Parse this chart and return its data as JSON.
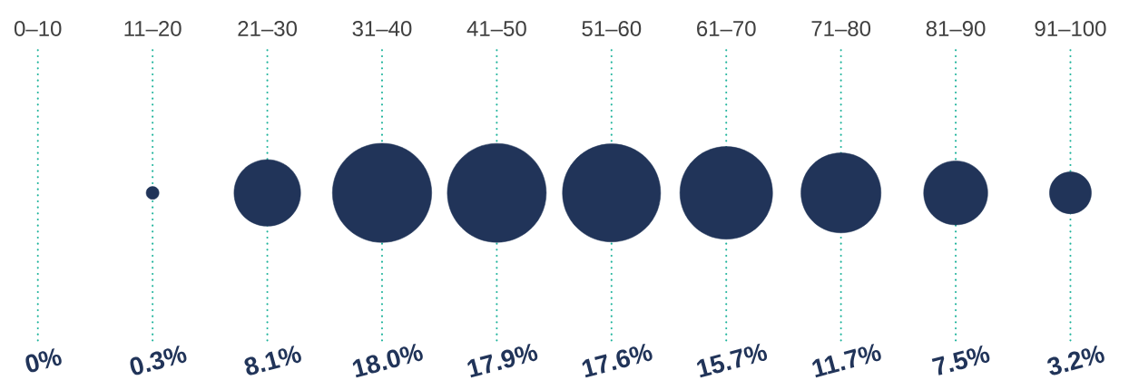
{
  "chart_data": {
    "type": "other",
    "color": "#213459",
    "categories": [
      "0–10",
      "11–20",
      "21–30",
      "31–40",
      "41–50",
      "51–60",
      "61–70",
      "71–80",
      "81–90",
      "91–100"
    ],
    "values": [
      0,
      0.3,
      8.1,
      18.0,
      17.9,
      17.6,
      15.7,
      11.7,
      7.5,
      3.2
    ],
    "value_labels": [
      "0%",
      "0.3%",
      "8.1%",
      "18.0%",
      "17.9%",
      "17.6%",
      "15.7%",
      "11.7%",
      "7.5%",
      "3.2%"
    ]
  }
}
